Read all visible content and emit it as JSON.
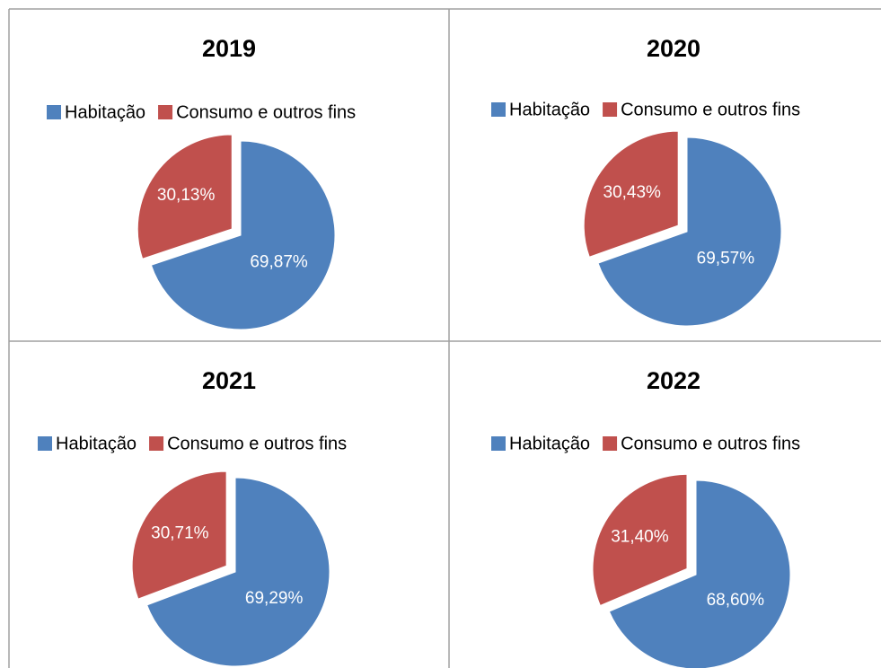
{
  "chart_data": [
    {
      "type": "pie",
      "title": "2019",
      "categories": [
        "Habitação",
        "Consumo e outros fins"
      ],
      "values": [
        69.87,
        30.13
      ],
      "value_labels": [
        "69,87%",
        "30,13%"
      ],
      "colors": [
        "#4f81bd",
        "#c0504d"
      ]
    },
    {
      "type": "pie",
      "title": "2020",
      "categories": [
        "Habitação",
        "Consumo e outros fins"
      ],
      "values": [
        69.57,
        30.43
      ],
      "value_labels": [
        "69,57%",
        "30,43%"
      ],
      "colors": [
        "#4f81bd",
        "#c0504d"
      ]
    },
    {
      "type": "pie",
      "title": "2021",
      "categories": [
        "Habitação",
        "Consumo e outros fins"
      ],
      "values": [
        69.29,
        30.71
      ],
      "value_labels": [
        "69,29%",
        "30,71%"
      ],
      "colors": [
        "#4f81bd",
        "#c0504d"
      ]
    },
    {
      "type": "pie",
      "title": "2022",
      "categories": [
        "Habitação",
        "Consumo e outros fins"
      ],
      "values": [
        68.6,
        31.4
      ],
      "value_labels": [
        "68,60%",
        "31,40%"
      ],
      "colors": [
        "#4f81bd",
        "#c0504d"
      ]
    }
  ]
}
